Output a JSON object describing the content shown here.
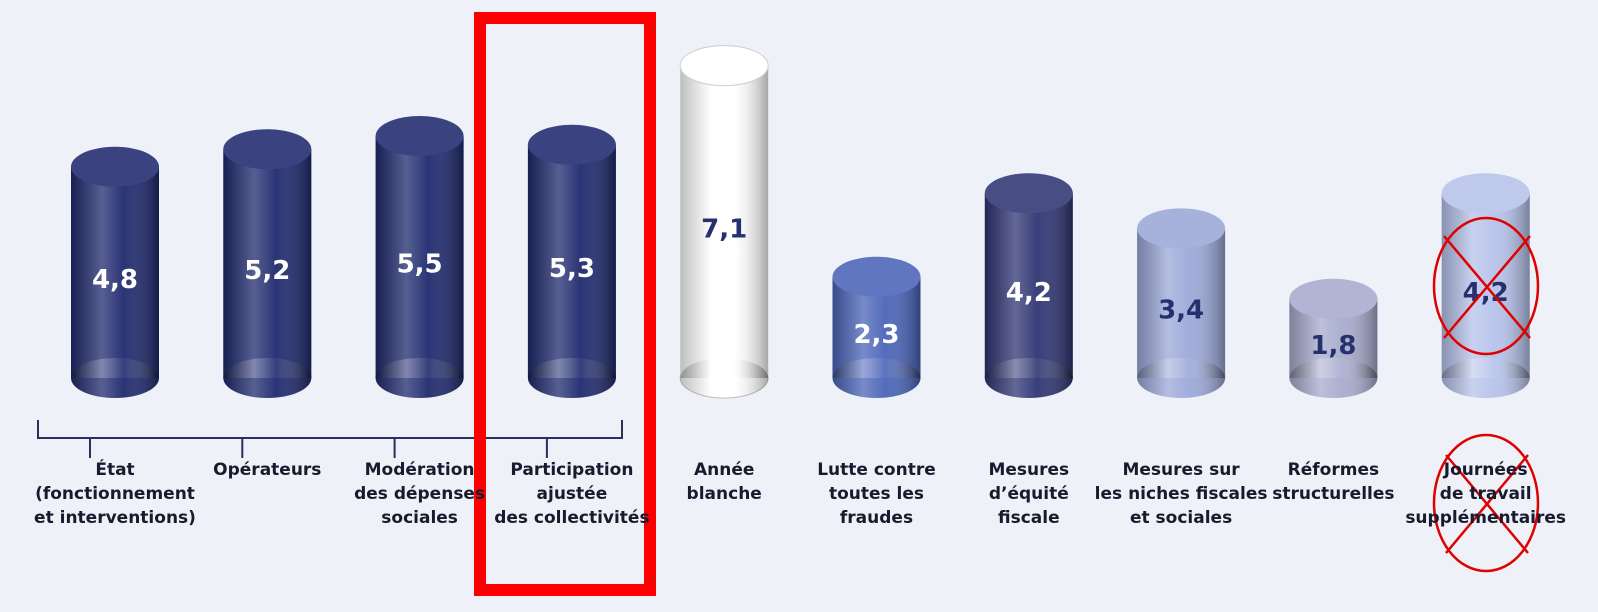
{
  "chart_data": {
    "type": "bar",
    "categories": [
      "État\n(fonctionnement\net interventions)",
      "Opérateurs",
      "Modération\ndes dépenses\nsociales",
      "Participation\najustée\ndes collectivités",
      "Année\nblanche",
      "Lutte contre\ntoutes les\nfraudes",
      "Mesures\nd’équité\nfiscale",
      "Mesures sur\nles niches fiscales\net sociales",
      "Réformes\nstructurelles",
      "Journées\nde travail\nsupplémentaires"
    ],
    "values": [
      4.8,
      5.2,
      5.5,
      5.3,
      7.1,
      2.3,
      4.2,
      3.4,
      1.8,
      4.2
    ],
    "value_labels": [
      "4,8",
      "5,2",
      "5,5",
      "5,3",
      "7,1",
      "2,3",
      "4,2",
      "3,4",
      "1,8",
      "4,2"
    ],
    "colors": [
      "#1f2a6e",
      "#1f2a6e",
      "#1f2a6e",
      "#1f2a6e",
      "#ffffff",
      "#4a64b8",
      "#2f3573",
      "#9ba8d8",
      "#a7abcd",
      "#b6c2ea"
    ]
  }
}
